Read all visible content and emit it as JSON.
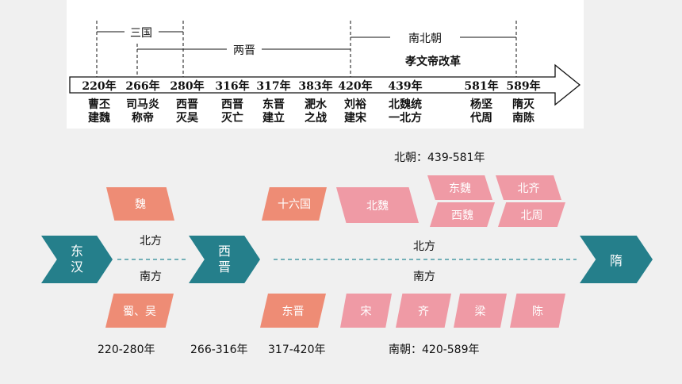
{
  "timeline": {
    "brackets": {
      "sanguo": "三国",
      "liangjin": "两晋",
      "nanbeichao": "南北朝"
    },
    "reform_label": "孝文帝改革",
    "years": [
      "220年",
      "266年",
      "280年",
      "316年",
      "317年",
      "383年",
      "420年",
      "439年",
      "581年",
      "589年"
    ],
    "events": [
      [
        "曹丕",
        "建魏"
      ],
      [
        "司马炎",
        "称帝"
      ],
      [
        "西晋",
        "灭吴"
      ],
      [
        "西晋",
        "灭亡"
      ],
      [
        "东晋",
        "建立"
      ],
      [
        "淝水",
        "之战"
      ],
      [
        "刘裕",
        "建宋"
      ],
      [
        "北魏统",
        "一北方"
      ],
      [
        "杨坚",
        "代周"
      ],
      [
        "隋灭",
        "南陈"
      ]
    ]
  },
  "diagram": {
    "chevrons": {
      "donghan": [
        "东",
        "汉"
      ],
      "xijin": [
        "西",
        "晋"
      ],
      "sui": "隋"
    },
    "north_label_1": "北方",
    "south_label_1": "南方",
    "north_label_2": "北方",
    "south_label_2": "南方",
    "north_blocks": {
      "wei": "魏",
      "shiliuguo": "十六国",
      "beiwei": "北魏",
      "dongwei": "东魏",
      "beiqi": "北齐",
      "xiwei": "西魏",
      "beizhou": "北周"
    },
    "south_blocks": {
      "shuwu": "蜀、吴",
      "dongjin": "东晋",
      "song": "宋",
      "qi": "齐",
      "liang": "梁",
      "chen": "陈"
    },
    "beichao_label": "北朝：439-581年",
    "period_labels": {
      "sanguo": "220-280年",
      "xijin": "266-316年",
      "dongjin": "317-420年",
      "nanchao": "南朝：420-589年"
    },
    "colors": {
      "teal": "#257f8b",
      "salmon": "#ee8c75",
      "pink": "#ef9aa5",
      "dash": "#2b8a96"
    }
  }
}
